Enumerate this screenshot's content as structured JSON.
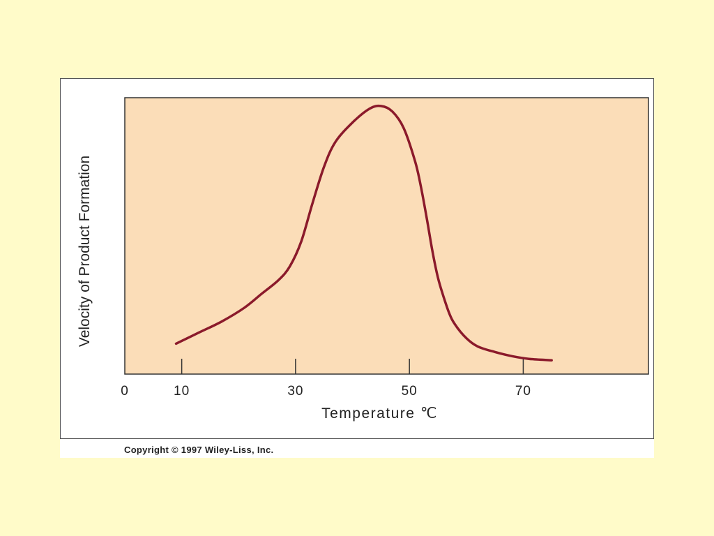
{
  "colors": {
    "page_background": "#FFFBC9",
    "plot_background": "#FBDDB8",
    "curve": "#8B1A2B",
    "axis": "#333333"
  },
  "chart_data": {
    "type": "line",
    "title": "",
    "xlabel": "Temperature ℃",
    "ylabel": "Velocity of Product Formation",
    "xlim": [
      0,
      92
    ],
    "ylim": [
      0,
      100
    ],
    "x_ticks": [
      0,
      10,
      30,
      50,
      70
    ],
    "x_tick_labels": [
      "0",
      "10",
      "30",
      "50",
      "70"
    ],
    "y_ticks": [],
    "grid": false,
    "legend": "none",
    "series": [
      {
        "x": [
          9,
          13,
          17,
          21,
          24,
          27,
          29,
          31,
          33,
          35,
          37,
          40,
          43,
          45,
          47,
          49,
          51,
          52,
          53,
          54,
          55,
          56,
          57,
          58,
          60,
          62,
          65,
          68,
          71,
          75
        ],
        "y": [
          11,
          15,
          19,
          24,
          29,
          34,
          39,
          48,
          62,
          75,
          84,
          91,
          96,
          97,
          95,
          89,
          77,
          68,
          57,
          45,
          35,
          28,
          22,
          18,
          13,
          10,
          8,
          6.5,
          5.5,
          5
        ]
      }
    ]
  },
  "copyright": "Copyright © 1997 Wiley-Liss, Inc."
}
